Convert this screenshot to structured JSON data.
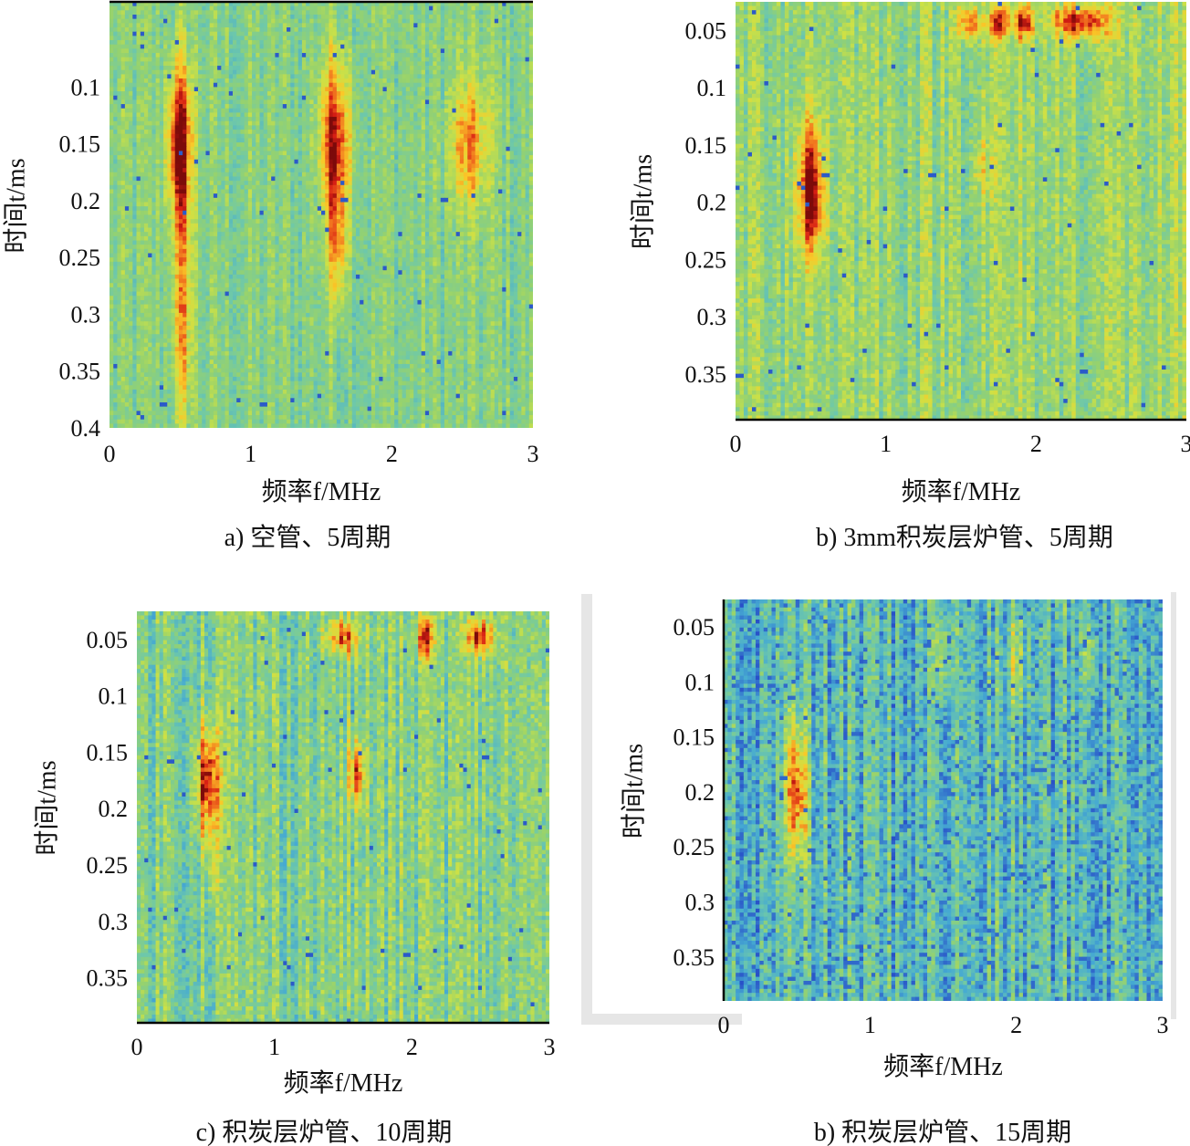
{
  "figure": {
    "panels": [
      {
        "caption": "a) 空管、5周期",
        "xlabel": "频率f/MHz",
        "ylabel": "时间t/ms"
      },
      {
        "caption": "b) 3mm积炭层炉管、5周期",
        "xlabel": "频率f/MHz",
        "ylabel": "时间t/ms"
      },
      {
        "caption": "c) 积炭层炉管、10周期",
        "xlabel": "频率f/MHz",
        "ylabel": "时间t/ms"
      },
      {
        "caption": "b) 积炭层炉管、15周期",
        "xlabel": "频率f/MHz",
        "ylabel": "时间t/ms"
      }
    ]
  },
  "chart_data": [
    {
      "type": "heatmap",
      "title": "",
      "caption": "a) 空管、5周期",
      "xlabel": "频率f/MHz",
      "ylabel": "时间t/ms",
      "xlim": [
        0,
        3
      ],
      "ylim": [
        0.025,
        0.4
      ],
      "x_ticks": [
        0,
        1,
        2,
        3
      ],
      "x_tick_labels": [
        "0",
        "1",
        "2",
        "3"
      ],
      "y_ticks": [
        0.1,
        0.15,
        0.2,
        0.25,
        0.3,
        0.35,
        0.4
      ],
      "y_tick_labels": [
        "0.1",
        "0.15",
        "0.2",
        "0.25",
        "0.3",
        "0.35",
        "0.4"
      ],
      "background": "#8cc887",
      "noise_level": 0.18,
      "hotspots": [
        {
          "f": 0.5,
          "t": 0.15,
          "sf": 0.065,
          "st": 0.05,
          "amp": 1.0
        },
        {
          "f": 0.52,
          "t": 0.3,
          "sf": 0.05,
          "st": 0.07,
          "amp": 0.55
        },
        {
          "f": 1.6,
          "t": 0.15,
          "sf": 0.075,
          "st": 0.055,
          "amp": 0.95
        },
        {
          "f": 1.62,
          "t": 0.25,
          "sf": 0.05,
          "st": 0.04,
          "amp": 0.45
        },
        {
          "f": 2.55,
          "t": 0.15,
          "sf": 0.1,
          "st": 0.04,
          "amp": 0.6
        }
      ]
    },
    {
      "type": "heatmap",
      "title": "",
      "caption": "b) 3mm积炭层炉管、5周期",
      "xlabel": "频率f/MHz",
      "ylabel": "时间t/ms",
      "xlim": [
        0,
        3
      ],
      "ylim": [
        0.025,
        0.39
      ],
      "x_ticks": [
        0,
        1,
        2,
        3
      ],
      "x_tick_labels": [
        "0",
        "1",
        "2",
        "3"
      ],
      "y_ticks": [
        0.05,
        0.1,
        0.15,
        0.2,
        0.25,
        0.3,
        0.35
      ],
      "y_tick_labels": [
        "0.05",
        "0.1",
        "0.15",
        "0.2",
        "0.25",
        "0.3",
        "0.35"
      ],
      "background": "#9bd07f",
      "noise_level": 0.22,
      "hotspots": [
        {
          "f": 0.5,
          "t": 0.19,
          "sf": 0.06,
          "st": 0.04,
          "amp": 1.0
        },
        {
          "f": 1.55,
          "t": 0.043,
          "sf": 0.05,
          "st": 0.011,
          "amp": 0.75
        },
        {
          "f": 1.75,
          "t": 0.043,
          "sf": 0.05,
          "st": 0.011,
          "amp": 0.75
        },
        {
          "f": 1.92,
          "t": 0.043,
          "sf": 0.04,
          "st": 0.011,
          "amp": 0.75
        },
        {
          "f": 2.3,
          "t": 0.043,
          "sf": 0.14,
          "st": 0.011,
          "amp": 0.8
        },
        {
          "f": 1.65,
          "t": 0.17,
          "sf": 0.05,
          "st": 0.02,
          "amp": 0.3
        }
      ]
    },
    {
      "type": "heatmap",
      "title": "",
      "caption": "c) 积炭层炉管、10周期",
      "xlabel": "频率f/MHz",
      "ylabel": "时间t/ms",
      "xlim": [
        0,
        3
      ],
      "ylim": [
        0.025,
        0.39
      ],
      "x_ticks": [
        0,
        1,
        2,
        3
      ],
      "x_tick_labels": [
        "0",
        "1",
        "2",
        "3"
      ],
      "y_ticks": [
        0.05,
        0.1,
        0.15,
        0.2,
        0.25,
        0.3,
        0.35
      ],
      "y_tick_labels": [
        "0.05",
        "0.1",
        "0.15",
        "0.2",
        "0.25",
        "0.3",
        "0.35"
      ],
      "background": "#8fcf98",
      "noise_level": 0.25,
      "hotspots": [
        {
          "f": 0.52,
          "t": 0.175,
          "sf": 0.06,
          "st": 0.035,
          "amp": 1.0
        },
        {
          "f": 0.55,
          "t": 0.255,
          "sf": 0.03,
          "st": 0.025,
          "amp": 0.35
        },
        {
          "f": 1.6,
          "t": 0.17,
          "sf": 0.04,
          "st": 0.02,
          "amp": 0.8
        },
        {
          "f": 1.5,
          "t": 0.048,
          "sf": 0.08,
          "st": 0.011,
          "amp": 0.7
        },
        {
          "f": 2.1,
          "t": 0.048,
          "sf": 0.05,
          "st": 0.012,
          "amp": 0.85
        },
        {
          "f": 2.5,
          "t": 0.048,
          "sf": 0.08,
          "st": 0.011,
          "amp": 0.8
        }
      ]
    },
    {
      "type": "heatmap",
      "title": "",
      "caption": "b) 积炭层炉管、15周期",
      "xlabel": "频率f/MHz",
      "ylabel": "时间t/ms",
      "xlim": [
        0,
        3
      ],
      "ylim": [
        0.025,
        0.39
      ],
      "x_ticks": [
        0,
        1,
        2,
        3
      ],
      "x_tick_labels": [
        "0",
        "1",
        "2",
        "3"
      ],
      "y_ticks": [
        0.05,
        0.1,
        0.15,
        0.2,
        0.25,
        0.3,
        0.35
      ],
      "y_tick_labels": [
        "0.05",
        "0.1",
        "0.15",
        "0.2",
        "0.25",
        "0.3",
        "0.35"
      ],
      "background": "#5fbfb6",
      "noise_level": 0.3,
      "hotspots": [
        {
          "f": 0.5,
          "t": 0.2,
          "sf": 0.05,
          "st": 0.045,
          "amp": 1.0
        },
        {
          "f": 1.5,
          "t": 0.075,
          "sf": 0.04,
          "st": 0.03,
          "amp": 0.4
        },
        {
          "f": 2.0,
          "t": 0.08,
          "sf": 0.04,
          "st": 0.03,
          "amp": 0.42
        },
        {
          "f": 2.5,
          "t": 0.075,
          "sf": 0.035,
          "st": 0.03,
          "amp": 0.38
        }
      ]
    }
  ]
}
